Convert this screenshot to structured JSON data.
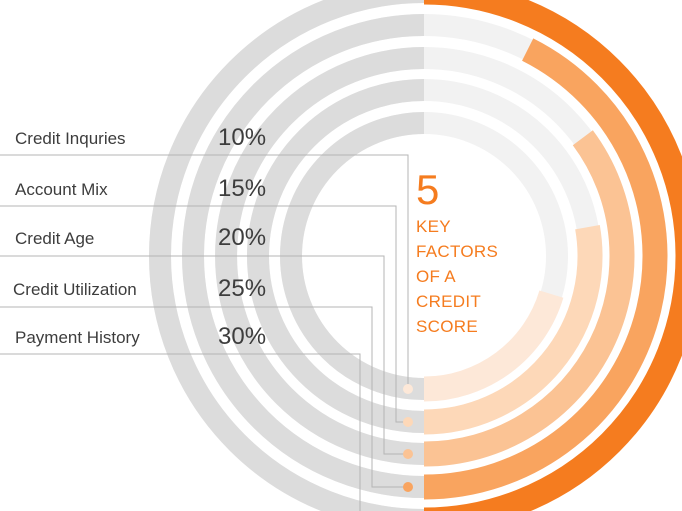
{
  "chart_data": {
    "type": "radial-bar",
    "title_number": "5",
    "title_lines": [
      "KEY",
      "FACTORS",
      "OF A",
      "CREDIT",
      "SCORE"
    ],
    "categories": [
      "Credit Inquries",
      "Account Mix",
      "Credit Age",
      "Credit Utilization",
      "Payment History"
    ],
    "values": [
      10,
      15,
      20,
      25,
      30
    ],
    "value_labels": [
      "10%",
      "15%",
      "20%",
      "25%",
      "30%"
    ],
    "track_color": "#dcdcdc",
    "colors": [
      "#fde8d8",
      "#fdd8b8",
      "#fbc394",
      "#f9a45f",
      "#f57c1f"
    ],
    "accent_color": "#f57c1f"
  }
}
